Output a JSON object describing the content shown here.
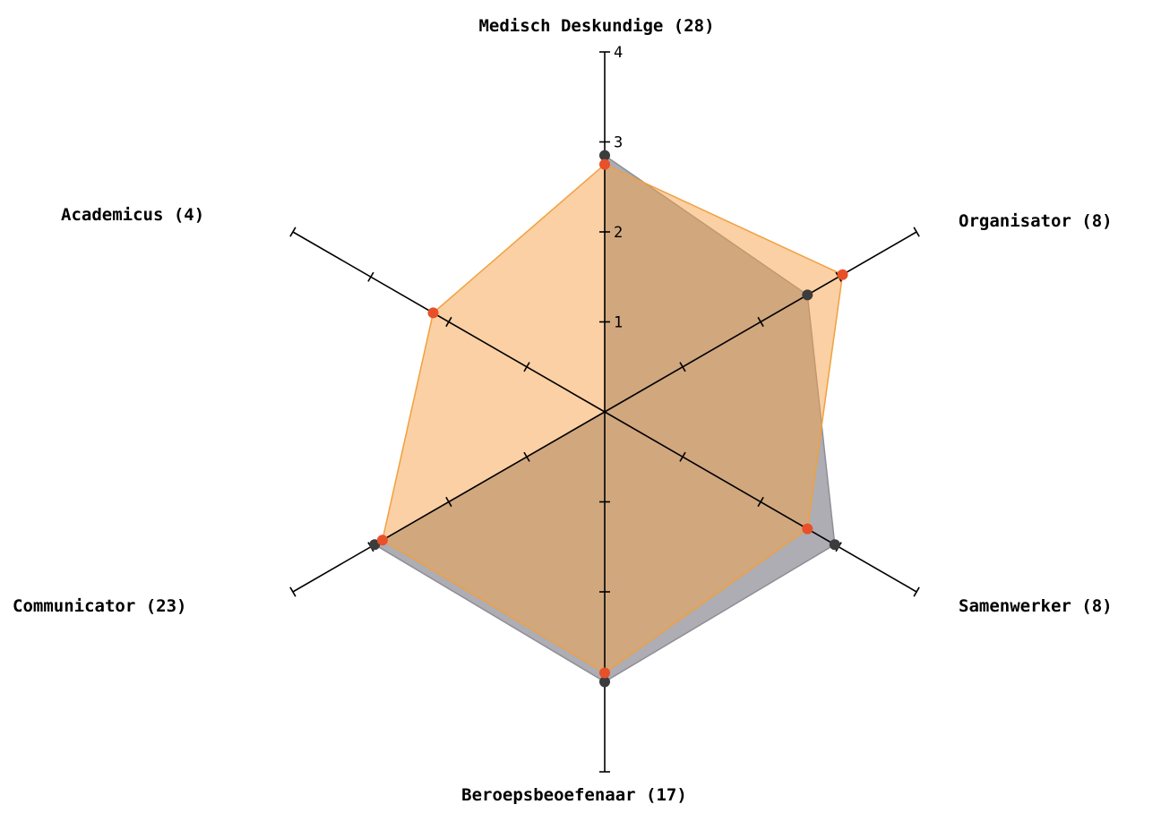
{
  "chart_data": {
    "type": "radar",
    "scale": {
      "min": 0,
      "max": 4,
      "ticks": [
        1,
        2,
        3,
        4
      ]
    },
    "tick_labels": [
      "1",
      "2",
      "3",
      "4"
    ],
    "axes": [
      {
        "key": "medisch",
        "label": "Medisch Deskundige (28)"
      },
      {
        "key": "organisator",
        "label": "Organisator (8)"
      },
      {
        "key": "samenwerker",
        "label": "Samenwerker (8)"
      },
      {
        "key": "beroepsbeoefenaar",
        "label": "Beroepsbeoefenaar (17)"
      },
      {
        "key": "communicator",
        "label": "Communicator (23)"
      },
      {
        "key": "academicus",
        "label": "Academicus (4)"
      }
    ],
    "series": [
      {
        "values": [
          2.85,
          2.6,
          2.95,
          3.0,
          2.95,
          0
        ],
        "fill": "#8e8e96",
        "stroke": "#8e8e96",
        "marker": "#3c3c3c"
      },
      {
        "values": [
          2.75,
          3.05,
          2.6,
          2.9,
          2.85,
          2.2
        ],
        "fill": "#f5a24a",
        "stroke": "#f0a040",
        "marker": "#e8502a"
      }
    ]
  }
}
